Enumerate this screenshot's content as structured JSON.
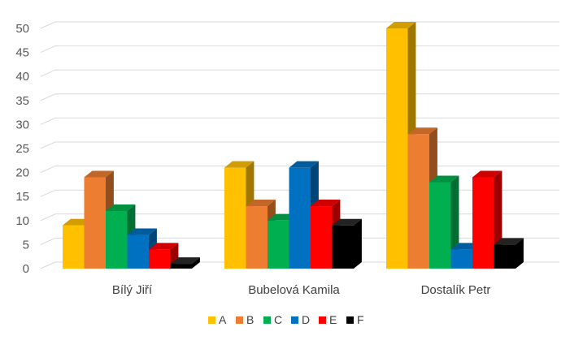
{
  "chart_data": {
    "type": "bar",
    "categories": [
      "Bílý Jiří",
      "Bubelová Kamila",
      "Dostalík Petr"
    ],
    "series": [
      {
        "name": "A",
        "values": [
          9,
          21,
          50
        ],
        "color": "#FFC000"
      },
      {
        "name": "B",
        "values": [
          19,
          13,
          28
        ],
        "color": "#ED7D31"
      },
      {
        "name": "C",
        "values": [
          12,
          10,
          18
        ],
        "color": "#00B050"
      },
      {
        "name": "D",
        "values": [
          7,
          21,
          4
        ],
        "color": "#0070C0"
      },
      {
        "name": "E",
        "values": [
          4,
          13,
          19
        ],
        "color": "#FF0000"
      },
      {
        "name": "F",
        "values": [
          1,
          9,
          5
        ],
        "color": "#000000"
      }
    ],
    "yticks": [
      0,
      5,
      10,
      15,
      20,
      25,
      30,
      35,
      40,
      45,
      50
    ],
    "ylim": [
      0,
      50
    ],
    "grid": true,
    "three_d": true,
    "legend_position": "bottom"
  }
}
